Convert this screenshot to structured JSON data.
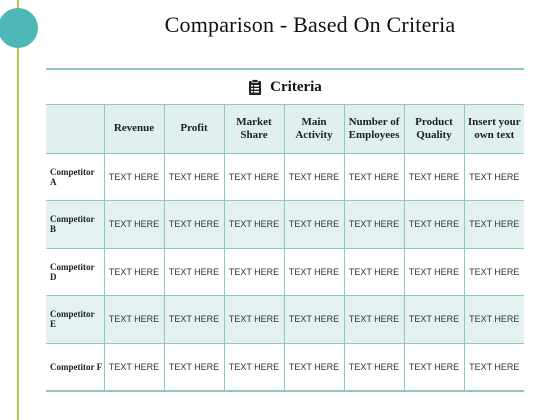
{
  "slide": {
    "title": "Comparison - Based On Criteria"
  },
  "table": {
    "group_label": "Criteria",
    "group_icon": "clipboard-icon",
    "columns": [
      "Revenue",
      "Profit",
      "Market Share",
      "Main Activity",
      "Number of Employees",
      "Product Quality",
      "Insert your own text"
    ],
    "rows": [
      {
        "name": "Competitor A",
        "cells": [
          "TEXT HERE",
          "TEXT HERE",
          "TEXT HERE",
          "TEXT HERE",
          "TEXT HERE",
          "TEXT HERE",
          "TEXT HERE"
        ]
      },
      {
        "name": "Competitor B",
        "cells": [
          "TEXT HERE",
          "TEXT HERE",
          "TEXT HERE",
          "TEXT HERE",
          "TEXT HERE",
          "TEXT HERE",
          "TEXT HERE"
        ]
      },
      {
        "name": "Competitor D",
        "cells": [
          "TEXT HERE",
          "TEXT HERE",
          "TEXT HERE",
          "TEXT HERE",
          "TEXT HERE",
          "TEXT HERE",
          "TEXT HERE"
        ]
      },
      {
        "name": "Competitor E",
        "cells": [
          "TEXT HERE",
          "TEXT HERE",
          "TEXT HERE",
          "TEXT HERE",
          "TEXT HERE",
          "TEXT HERE",
          "TEXT HERE"
        ]
      },
      {
        "name": "Competitor F",
        "cells": [
          "TEXT HERE",
          "TEXT HERE",
          "TEXT HERE",
          "TEXT HERE",
          "TEXT HERE",
          "TEXT HERE",
          "TEXT HERE"
        ]
      }
    ]
  },
  "colors": {
    "accent_teal": "#4db8b5",
    "accent_green": "#b6c84a",
    "border": "#8fc7c5",
    "band": "#e3f2f1"
  }
}
